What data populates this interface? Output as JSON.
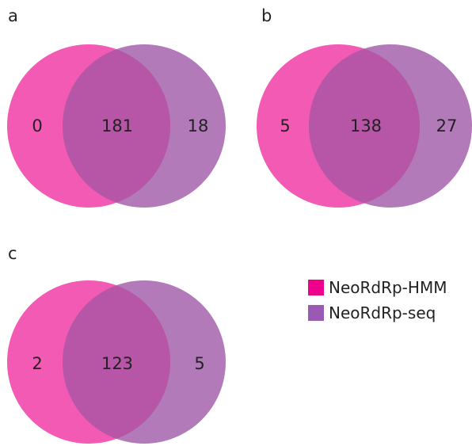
{
  "colors": {
    "hmm": "#f25ab4",
    "seq": "#b27ab9",
    "overlap": "#b755a6",
    "legend_hmm": "#ec008c",
    "legend_seq": "#9b59b6"
  },
  "panels": [
    {
      "letter": "a",
      "left_only": "0",
      "both": "181",
      "right_only": "18"
    },
    {
      "letter": "b",
      "left_only": "5",
      "both": "138",
      "right_only": "27"
    },
    {
      "letter": "c",
      "left_only": "2",
      "both": "123",
      "right_only": "5"
    }
  ],
  "legend": {
    "items": [
      {
        "label": "NeoRdRp-HMM",
        "color": "#ec008c"
      },
      {
        "label": "NeoRdRp-seq",
        "color": "#9b59b6"
      }
    ]
  }
}
